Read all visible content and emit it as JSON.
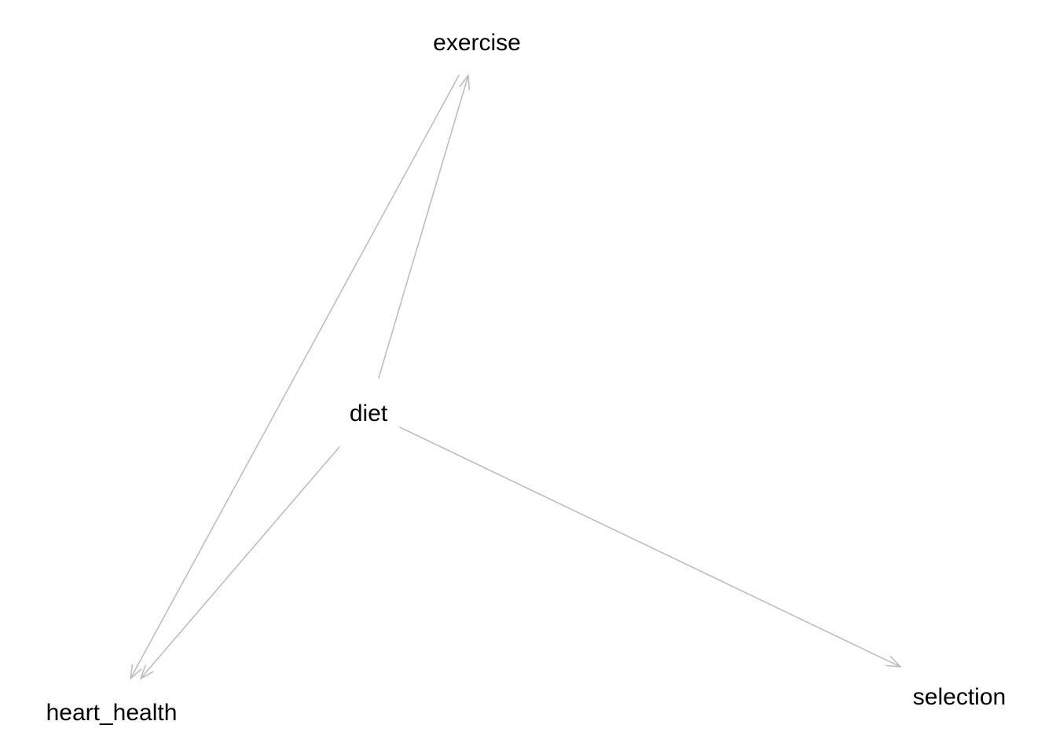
{
  "diagram": {
    "type": "directed-acyclic-graph",
    "edge_color": "#bebebe",
    "text_color": "#000000",
    "nodes": [
      {
        "id": "exercise",
        "label": "exercise"
      },
      {
        "id": "diet",
        "label": "diet"
      },
      {
        "id": "heart_health",
        "label": "heart_health"
      },
      {
        "id": "selection",
        "label": "selection"
      }
    ],
    "edges": [
      {
        "from": "exercise",
        "to": "heart_health"
      },
      {
        "from": "diet",
        "to": "exercise"
      },
      {
        "from": "diet",
        "to": "heart_health"
      },
      {
        "from": "diet",
        "to": "selection"
      }
    ]
  }
}
